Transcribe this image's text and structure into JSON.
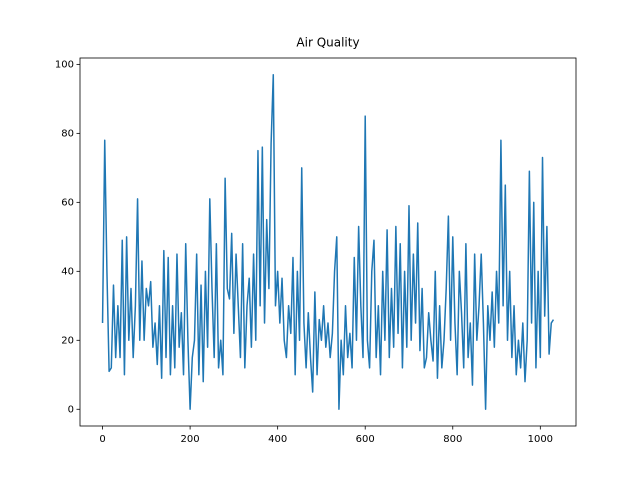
{
  "chart_data": {
    "type": "line",
    "title": "Air Quality",
    "x": [
      0,
      5,
      10,
      15,
      20,
      25,
      30,
      35,
      40,
      45,
      50,
      55,
      60,
      65,
      70,
      75,
      80,
      85,
      90,
      95,
      100,
      105,
      110,
      115,
      120,
      125,
      130,
      135,
      140,
      145,
      150,
      155,
      160,
      165,
      170,
      175,
      180,
      185,
      190,
      195,
      200,
      205,
      210,
      215,
      220,
      225,
      230,
      235,
      240,
      245,
      250,
      255,
      260,
      265,
      270,
      275,
      280,
      285,
      290,
      295,
      300,
      305,
      310,
      315,
      320,
      325,
      330,
      335,
      340,
      345,
      350,
      355,
      360,
      365,
      370,
      375,
      380,
      385,
      390,
      395,
      400,
      405,
      410,
      415,
      420,
      425,
      430,
      435,
      440,
      445,
      450,
      455,
      460,
      465,
      470,
      475,
      480,
      485,
      490,
      495,
      500,
      505,
      510,
      515,
      520,
      525,
      530,
      535,
      540,
      545,
      550,
      555,
      560,
      565,
      570,
      575,
      580,
      585,
      590,
      595,
      600,
      605,
      610,
      615,
      620,
      625,
      630,
      635,
      640,
      645,
      650,
      655,
      660,
      665,
      670,
      675,
      680,
      685,
      690,
      695,
      700,
      705,
      710,
      715,
      720,
      725,
      730,
      735,
      740,
      745,
      750,
      755,
      760,
      765,
      770,
      775,
      780,
      785,
      790,
      795,
      800,
      805,
      810,
      815,
      820,
      825,
      830,
      835,
      840,
      845,
      850,
      855,
      860,
      865,
      870,
      875,
      880,
      885,
      890,
      895,
      900,
      905,
      910,
      915,
      920,
      925,
      930,
      935,
      940,
      945,
      950,
      955,
      960,
      965,
      970,
      975,
      980,
      985,
      990,
      995,
      1000,
      1005,
      1010,
      1015,
      1020,
      1025,
      1030
    ],
    "series": [
      {
        "color": "#1f77b4",
        "values": [
          25,
          78,
          40,
          11,
          12,
          36,
          15,
          30,
          15,
          49,
          10,
          50,
          20,
          35,
          15,
          30,
          61,
          20,
          43,
          20,
          35,
          30,
          37,
          18,
          25,
          13,
          30,
          9,
          46,
          15,
          44,
          10,
          30,
          12,
          45,
          18,
          28,
          10,
          48,
          20,
          0,
          15,
          20,
          45,
          10,
          36,
          8,
          40,
          18,
          61,
          35,
          15,
          48,
          12,
          20,
          10,
          67,
          35,
          32,
          51,
          22,
          45,
          30,
          15,
          48,
          12,
          30,
          38,
          18,
          45,
          20,
          75,
          30,
          76,
          25,
          55,
          35,
          77,
          97,
          30,
          40,
          25,
          38,
          20,
          15,
          30,
          22,
          44,
          10,
          40,
          20,
          70,
          25,
          12,
          28,
          15,
          5,
          34,
          10,
          26,
          20,
          30,
          18,
          25,
          15,
          22,
          40,
          50,
          0,
          20,
          10,
          30,
          15,
          22,
          12,
          44,
          20,
          53,
          30,
          15,
          85,
          20,
          12,
          40,
          49,
          15,
          30,
          10,
          40,
          20,
          52,
          15,
          35,
          18,
          53,
          22,
          48,
          12,
          40,
          18,
          59,
          20,
          45,
          25,
          54,
          17,
          35,
          12,
          15,
          28,
          20,
          14,
          40,
          9,
          30,
          12,
          20,
          35,
          56,
          20,
          50,
          25,
          10,
          40,
          28,
          12,
          48,
          15,
          25,
          7,
          45,
          20,
          30,
          45,
          25,
          0,
          30,
          20,
          34,
          18,
          40,
          25,
          78,
          30,
          65,
          20,
          40,
          15,
          30,
          10,
          20,
          12,
          25,
          8,
          20,
          69,
          25,
          60,
          12,
          40,
          15,
          73,
          27,
          53,
          16,
          25,
          26
        ]
      }
    ],
    "xlim": [
      -51.5,
      1081.5
    ],
    "xticks": [
      0,
      200,
      400,
      600,
      800,
      1000
    ],
    "ylim": [
      -4.85,
      101.85
    ],
    "yticks": [
      0,
      20,
      40,
      60,
      80,
      100
    ],
    "grid": false
  }
}
